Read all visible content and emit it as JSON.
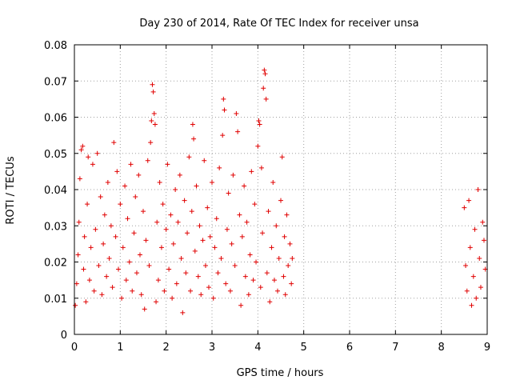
{
  "chart_data": {
    "type": "scatter",
    "title": "Day 230 of 2014, Rate Of TEC Index for receiver unsa",
    "xlabel": "GPS time / hours",
    "ylabel": "ROTI / TECUs",
    "xlim": [
      0,
      9
    ],
    "ylim": [
      0,
      0.08
    ],
    "x_ticks": [
      0,
      1,
      2,
      3,
      4,
      5,
      6,
      7,
      8,
      9
    ],
    "x_tick_labels": [
      "0",
      "1",
      "2",
      "3",
      "4",
      "5",
      "6",
      "7",
      "8",
      "9"
    ],
    "y_ticks": [
      0,
      0.01,
      0.02,
      0.03,
      0.04,
      0.05,
      0.06,
      0.07,
      0.08
    ],
    "y_tick_labels": [
      "0",
      "0.01",
      "0.02",
      "0.03",
      "0.04",
      "0.05",
      "0.06",
      "0.07",
      "0.08"
    ],
    "grid": true,
    "marker": "+",
    "marker_color": "#e00000",
    "series": [
      {
        "name": "ROTI",
        "points": [
          [
            0.02,
            0.008
          ],
          [
            0.05,
            0.014
          ],
          [
            0.08,
            0.022
          ],
          [
            0.1,
            0.031
          ],
          [
            0.12,
            0.043
          ],
          [
            0.15,
            0.051
          ],
          [
            0.18,
            0.052
          ],
          [
            0.2,
            0.018
          ],
          [
            0.22,
            0.027
          ],
          [
            0.25,
            0.009
          ],
          [
            0.28,
            0.036
          ],
          [
            0.3,
            0.049
          ],
          [
            0.33,
            0.015
          ],
          [
            0.36,
            0.024
          ],
          [
            0.4,
            0.047
          ],
          [
            0.43,
            0.012
          ],
          [
            0.46,
            0.029
          ],
          [
            0.5,
            0.05
          ],
          [
            0.53,
            0.019
          ],
          [
            0.57,
            0.038
          ],
          [
            0.6,
            0.011
          ],
          [
            0.63,
            0.025
          ],
          [
            0.66,
            0.033
          ],
          [
            0.7,
            0.016
          ],
          [
            0.73,
            0.042
          ],
          [
            0.76,
            0.021
          ],
          [
            0.8,
            0.03
          ],
          [
            0.83,
            0.013
          ],
          [
            0.86,
            0.053
          ],
          [
            0.9,
            0.027
          ],
          [
            0.93,
            0.045
          ],
          [
            0.96,
            0.018
          ],
          [
            1.0,
            0.036
          ],
          [
            1.03,
            0.01
          ],
          [
            1.06,
            0.024
          ],
          [
            1.1,
            0.041
          ],
          [
            1.13,
            0.015
          ],
          [
            1.16,
            0.032
          ],
          [
            1.2,
            0.02
          ],
          [
            1.23,
            0.047
          ],
          [
            1.26,
            0.012
          ],
          [
            1.3,
            0.028
          ],
          [
            1.33,
            0.038
          ],
          [
            1.36,
            0.017
          ],
          [
            1.4,
            0.044
          ],
          [
            1.43,
            0.022
          ],
          [
            1.46,
            0.011
          ],
          [
            1.5,
            0.034
          ],
          [
            1.53,
            0.007
          ],
          [
            1.56,
            0.026
          ],
          [
            1.6,
            0.048
          ],
          [
            1.63,
            0.019
          ],
          [
            1.66,
            0.053
          ],
          [
            1.68,
            0.059
          ],
          [
            1.7,
            0.069
          ],
          [
            1.72,
            0.067
          ],
          [
            1.74,
            0.061
          ],
          [
            1.76,
            0.058
          ],
          [
            1.78,
            0.009
          ],
          [
            1.8,
            0.031
          ],
          [
            1.83,
            0.015
          ],
          [
            1.86,
            0.042
          ],
          [
            1.9,
            0.024
          ],
          [
            1.93,
            0.036
          ],
          [
            1.96,
            0.012
          ],
          [
            2.0,
            0.029
          ],
          [
            2.03,
            0.047
          ],
          [
            2.06,
            0.018
          ],
          [
            2.1,
            0.033
          ],
          [
            2.13,
            0.01
          ],
          [
            2.16,
            0.025
          ],
          [
            2.2,
            0.04
          ],
          [
            2.23,
            0.014
          ],
          [
            2.26,
            0.031
          ],
          [
            2.3,
            0.044
          ],
          [
            2.33,
            0.021
          ],
          [
            2.36,
            0.006
          ],
          [
            2.4,
            0.037
          ],
          [
            2.43,
            0.017
          ],
          [
            2.46,
            0.028
          ],
          [
            2.5,
            0.049
          ],
          [
            2.53,
            0.012
          ],
          [
            2.56,
            0.034
          ],
          [
            2.58,
            0.058
          ],
          [
            2.6,
            0.054
          ],
          [
            2.63,
            0.023
          ],
          [
            2.66,
            0.041
          ],
          [
            2.7,
            0.016
          ],
          [
            2.73,
            0.03
          ],
          [
            2.76,
            0.011
          ],
          [
            2.8,
            0.026
          ],
          [
            2.83,
            0.048
          ],
          [
            2.86,
            0.019
          ],
          [
            2.9,
            0.035
          ],
          [
            2.93,
            0.013
          ],
          [
            2.96,
            0.027
          ],
          [
            3.0,
            0.042
          ],
          [
            3.03,
            0.01
          ],
          [
            3.06,
            0.024
          ],
          [
            3.1,
            0.032
          ],
          [
            3.13,
            0.017
          ],
          [
            3.16,
            0.046
          ],
          [
            3.2,
            0.021
          ],
          [
            3.23,
            0.055
          ],
          [
            3.25,
            0.065
          ],
          [
            3.27,
            0.062
          ],
          [
            3.3,
            0.014
          ],
          [
            3.33,
            0.029
          ],
          [
            3.36,
            0.039
          ],
          [
            3.4,
            0.012
          ],
          [
            3.43,
            0.025
          ],
          [
            3.46,
            0.044
          ],
          [
            3.5,
            0.019
          ],
          [
            3.53,
            0.061
          ],
          [
            3.56,
            0.056
          ],
          [
            3.6,
            0.033
          ],
          [
            3.63,
            0.008
          ],
          [
            3.66,
            0.027
          ],
          [
            3.7,
            0.041
          ],
          [
            3.73,
            0.016
          ],
          [
            3.76,
            0.031
          ],
          [
            3.8,
            0.011
          ],
          [
            3.83,
            0.022
          ],
          [
            3.86,
            0.045
          ],
          [
            3.9,
            0.015
          ],
          [
            3.93,
            0.036
          ],
          [
            3.96,
            0.02
          ],
          [
            4.0,
            0.052
          ],
          [
            4.02,
            0.059
          ],
          [
            4.04,
            0.058
          ],
          [
            4.06,
            0.013
          ],
          [
            4.08,
            0.046
          ],
          [
            4.1,
            0.028
          ],
          [
            4.12,
            0.068
          ],
          [
            4.14,
            0.073
          ],
          [
            4.16,
            0.072
          ],
          [
            4.18,
            0.065
          ],
          [
            4.2,
            0.017
          ],
          [
            4.23,
            0.034
          ],
          [
            4.26,
            0.009
          ],
          [
            4.3,
            0.024
          ],
          [
            4.33,
            0.042
          ],
          [
            4.36,
            0.015
          ],
          [
            4.4,
            0.03
          ],
          [
            4.43,
            0.012
          ],
          [
            4.46,
            0.021
          ],
          [
            4.5,
            0.037
          ],
          [
            4.53,
            0.049
          ],
          [
            4.56,
            0.016
          ],
          [
            4.58,
            0.027
          ],
          [
            4.6,
            0.011
          ],
          [
            4.63,
            0.033
          ],
          [
            4.66,
            0.019
          ],
          [
            4.7,
            0.025
          ],
          [
            4.73,
            0.014
          ],
          [
            4.75,
            0.021
          ],
          [
            8.5,
            0.035
          ],
          [
            8.53,
            0.019
          ],
          [
            8.56,
            0.012
          ],
          [
            8.6,
            0.037
          ],
          [
            8.63,
            0.024
          ],
          [
            8.66,
            0.008
          ],
          [
            8.7,
            0.016
          ],
          [
            8.73,
            0.029
          ],
          [
            8.76,
            0.01
          ],
          [
            8.8,
            0.04
          ],
          [
            8.83,
            0.021
          ],
          [
            8.86,
            0.013
          ],
          [
            8.9,
            0.031
          ],
          [
            8.93,
            0.026
          ],
          [
            8.96,
            0.018
          ]
        ]
      }
    ]
  }
}
